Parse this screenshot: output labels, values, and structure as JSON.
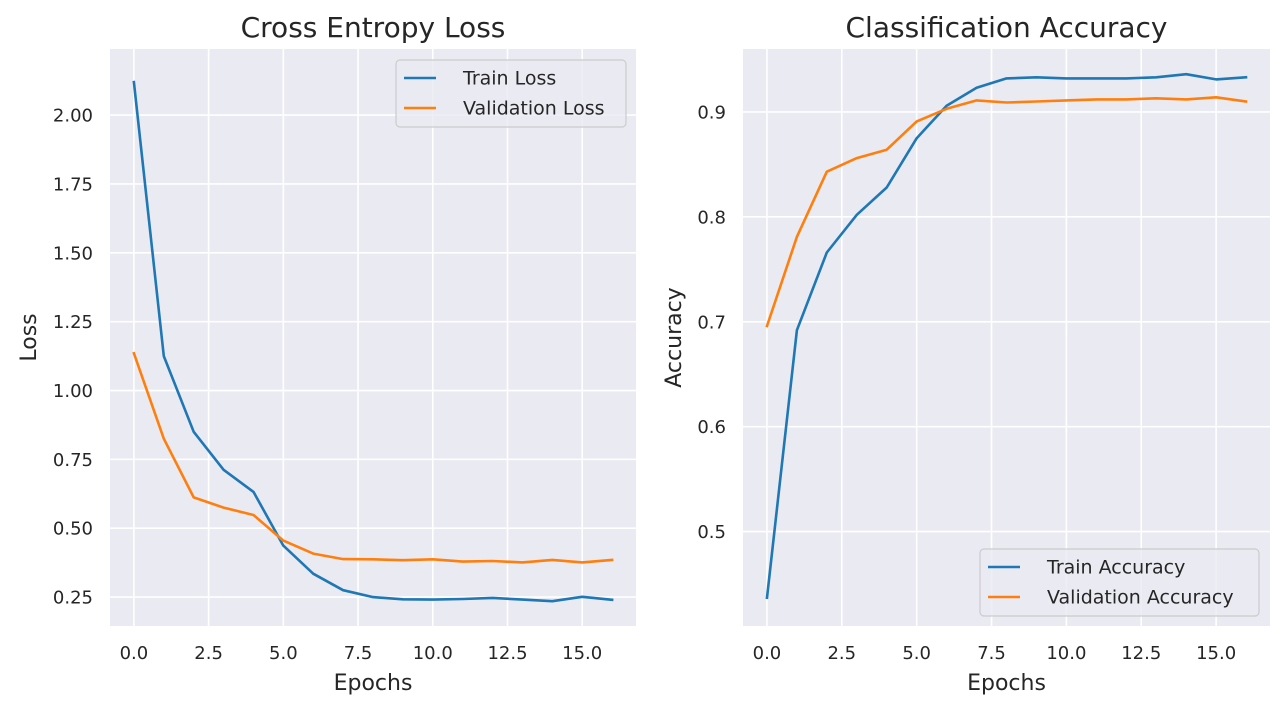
{
  "chart_data": [
    {
      "type": "line",
      "title": "Cross Entropy Loss",
      "xlabel": "Epochs",
      "ylabel": "Loss",
      "xlim": [
        -0.8,
        16.8
      ],
      "ylim": [
        0.145,
        2.24
      ],
      "xticks": [
        0,
        2.5,
        5,
        7.5,
        10,
        12.5,
        15
      ],
      "xtick_labels": [
        "0.0",
        "2.5",
        "5.0",
        "7.5",
        "10.0",
        "12.5",
        "15.0"
      ],
      "yticks": [
        0.25,
        0.5,
        0.75,
        1.0,
        1.25,
        1.5,
        1.75,
        2.0
      ],
      "ytick_labels": [
        "0.25",
        "0.50",
        "0.75",
        "1.00",
        "1.25",
        "1.50",
        "1.75",
        "2.00"
      ],
      "grid": true,
      "legend_position": "top-right",
      "x": [
        0,
        1,
        2,
        3,
        4,
        5,
        6,
        7,
        8,
        9,
        10,
        11,
        12,
        13,
        14,
        15,
        16
      ],
      "series": [
        {
          "name": "Train Loss",
          "color": "#1f77b4",
          "values": [
            2.12,
            1.125,
            0.85,
            0.712,
            0.632,
            0.437,
            0.335,
            0.275,
            0.25,
            0.242,
            0.241,
            0.243,
            0.247,
            0.241,
            0.235,
            0.251,
            0.24
          ]
        },
        {
          "name": "Validation Loss",
          "color": "#ff7f0e",
          "values": [
            1.135,
            0.825,
            0.612,
            0.575,
            0.548,
            0.455,
            0.408,
            0.388,
            0.387,
            0.384,
            0.387,
            0.379,
            0.381,
            0.376,
            0.385,
            0.376,
            0.385
          ]
        }
      ]
    },
    {
      "type": "line",
      "title": "Classification Accuracy",
      "xlabel": "Epochs",
      "ylabel": "Accuracy",
      "xlim": [
        -0.8,
        16.8
      ],
      "ylim": [
        0.41,
        0.96
      ],
      "xticks": [
        0,
        2.5,
        5,
        7.5,
        10,
        12.5,
        15
      ],
      "xtick_labels": [
        "0.0",
        "2.5",
        "5.0",
        "7.5",
        "10.0",
        "12.5",
        "15.0"
      ],
      "yticks": [
        0.5,
        0.6,
        0.7,
        0.8,
        0.9
      ],
      "ytick_labels": [
        "0.5",
        "0.6",
        "0.7",
        "0.8",
        "0.9"
      ],
      "grid": true,
      "legend_position": "bottom-right",
      "x": [
        0,
        1,
        2,
        3,
        4,
        5,
        6,
        7,
        8,
        9,
        10,
        11,
        12,
        13,
        14,
        15,
        16
      ],
      "series": [
        {
          "name": "Train Accuracy",
          "color": "#1f77b4",
          "values": [
            0.437,
            0.692,
            0.766,
            0.802,
            0.828,
            0.875,
            0.906,
            0.923,
            0.932,
            0.933,
            0.932,
            0.932,
            0.932,
            0.933,
            0.936,
            0.931,
            0.933
          ]
        },
        {
          "name": "Validation Accuracy",
          "color": "#ff7f0e",
          "values": [
            0.696,
            0.781,
            0.843,
            0.856,
            0.864,
            0.891,
            0.903,
            0.911,
            0.909,
            0.91,
            0.911,
            0.912,
            0.912,
            0.913,
            0.912,
            0.914,
            0.91
          ]
        }
      ]
    }
  ]
}
